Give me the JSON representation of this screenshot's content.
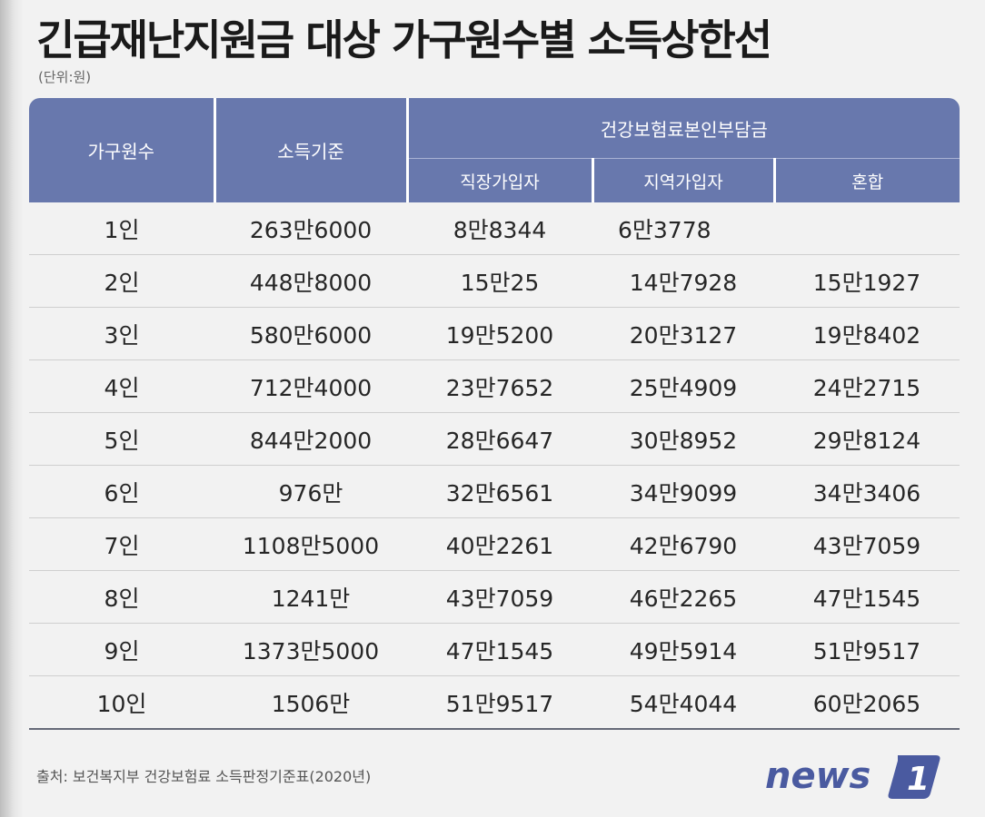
{
  "title": "긴급재난지원금 대상 가구원수별 소득상한선",
  "unit": "(단위:원)",
  "table": {
    "headers": {
      "household": "가구원수",
      "income": "소득기준",
      "insurance_group": "건강보험료본인부담금",
      "employee": "직장가입자",
      "regional": "지역가입자",
      "mixed": "혼합"
    },
    "rows": [
      [
        "1인",
        "263만6000",
        "8만8344",
        "6만3778",
        ""
      ],
      [
        "2인",
        "448만8000",
        "15만25",
        "14만7928",
        "15만1927"
      ],
      [
        "3인",
        "580만6000",
        "19만5200",
        "20만3127",
        "19만8402"
      ],
      [
        "4인",
        "712만4000",
        "23만7652",
        "25만4909",
        "24만2715"
      ],
      [
        "5인",
        "844만2000",
        "28만6647",
        "30만8952",
        "29만8124"
      ],
      [
        "6인",
        "976만",
        "32만6561",
        "34만9099",
        "34만3406"
      ],
      [
        "7인",
        "1108만5000",
        "40만2261",
        "42만6790",
        "43만7059"
      ],
      [
        "8인",
        "1241만",
        "43만7059",
        "46만2265",
        "47만1545"
      ],
      [
        "9인",
        "1373만5000",
        "47만1545",
        "49만5914",
        "51만9517"
      ],
      [
        "10인",
        "1506만",
        "51만9517",
        "54만4044",
        "60만2065"
      ]
    ]
  },
  "source": "출처: 보건복지부 건강보험료 소득판정기준표(2020년)",
  "logo": {
    "text": "news",
    "badge": "1",
    "color": "#4a5aa0"
  },
  "colors": {
    "header_bg": "#6878ad",
    "header_text": "#ffffff"
  }
}
